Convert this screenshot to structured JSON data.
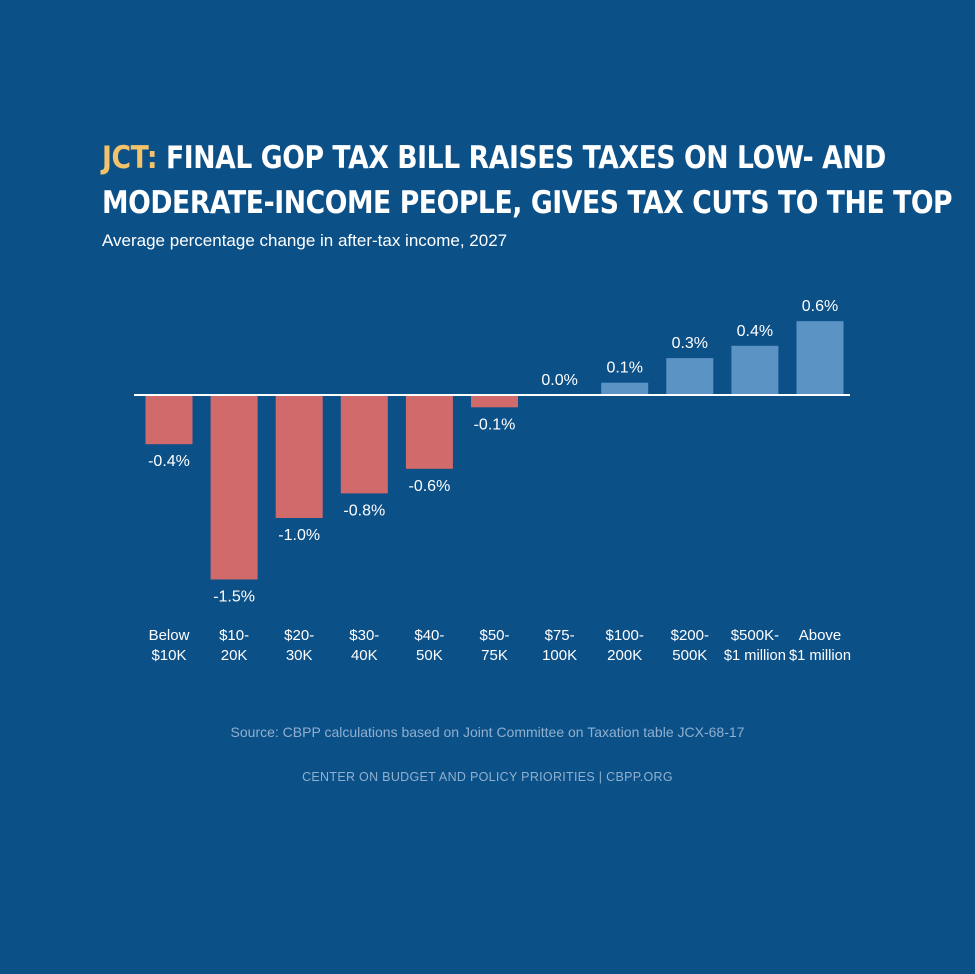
{
  "header": {
    "title_accent": "JCT:",
    "title_line1": " FINAL GOP TAX BILL RAISES TAXES ON LOW- AND",
    "title_line2": "MODERATE-INCOME PEOPLE, GIVES TAX CUTS TO THE TOP",
    "subtitle": "Average percentage change in after-tax income, 2027"
  },
  "colors": {
    "background": "#0c5088",
    "negative": "#d16a6b",
    "positive": "#5a93c4",
    "accent": "#f3c26b"
  },
  "chart_data": {
    "type": "bar",
    "categories": [
      [
        "Below",
        "$10K"
      ],
      [
        "$10-",
        "20K"
      ],
      [
        "$20-",
        "30K"
      ],
      [
        "$30-",
        "40K"
      ],
      [
        "$40-",
        "50K"
      ],
      [
        "$50-",
        "75K"
      ],
      [
        "$75-",
        "100K"
      ],
      [
        "$100-",
        "200K"
      ],
      [
        "$200-",
        "500K"
      ],
      [
        "$500K-",
        "$1 million"
      ],
      [
        "Above",
        "$1 million"
      ]
    ],
    "values": [
      -0.4,
      -1.5,
      -1.0,
      -0.8,
      -0.6,
      -0.1,
      0.0,
      0.1,
      0.3,
      0.4,
      0.6
    ],
    "data_labels": [
      "-0.4%",
      "-1.5%",
      "-1.0%",
      "-0.8%",
      "-0.6%",
      "-0.1%",
      "0.0%",
      "0.1%",
      "0.3%",
      "0.4%",
      "0.6%"
    ],
    "title": "JCT: FINAL GOP TAX BILL RAISES TAXES ON LOW- AND MODERATE-INCOME PEOPLE, GIVES TAX CUTS TO THE TOP",
    "subtitle": "Average percentage change in after-tax income, 2027",
    "ylim": [
      -1.5,
      0.6
    ],
    "grid": false,
    "legend": "none"
  },
  "footer": {
    "source": "Source: CBPP calculations based on Joint Committee on Taxation table JCX-68-17",
    "org": "CENTER ON BUDGET AND POLICY PRIORITIES | CBPP.ORG"
  }
}
